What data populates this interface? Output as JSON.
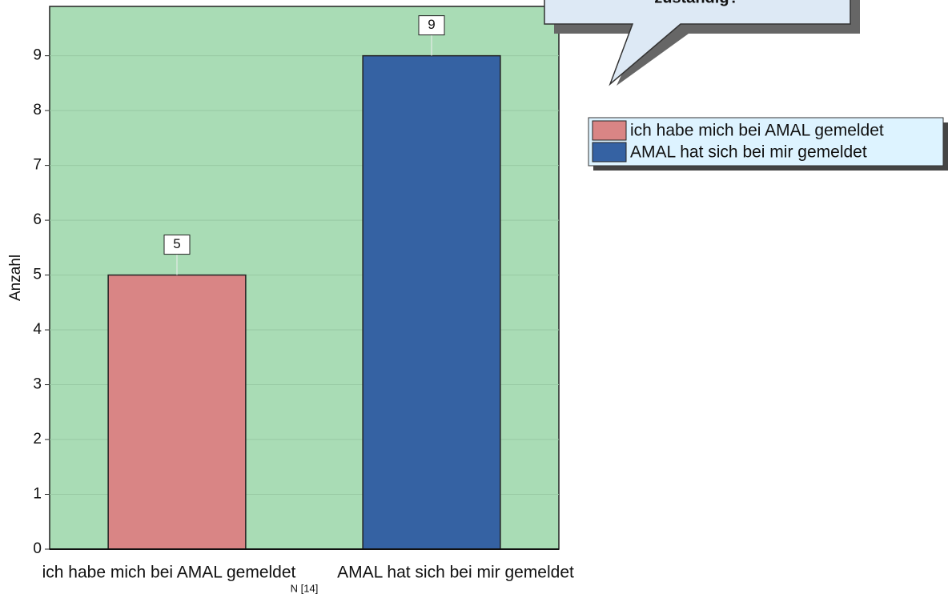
{
  "chart_data": {
    "type": "bar",
    "annotation": "zuständig?",
    "categories": [
      "ich habe mich bei AMAL gemeldet",
      "AMAL hat sich bei mir gemeldet"
    ],
    "values": [
      5,
      9
    ],
    "colors": [
      "#d98585",
      "#3562a3"
    ],
    "ylabel": "Anzahl",
    "xlabel": "N [14]",
    "ylim": [
      0,
      9.9
    ],
    "yticks": [
      0,
      1,
      2,
      3,
      4,
      5,
      6,
      7,
      8,
      9
    ],
    "grid": true
  }
}
